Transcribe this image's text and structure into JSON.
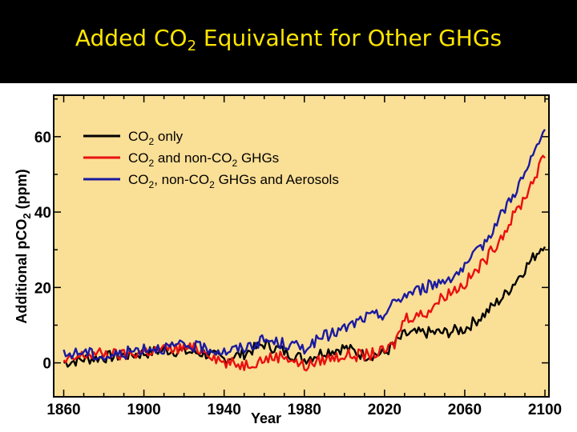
{
  "slide": {
    "title_main": "Added CO",
    "title_sub": "2",
    "title_rest": " Equivalent for Other GHGs",
    "title_color": "#ffe600",
    "header_bg": "#000000"
  },
  "chart_data": {
    "type": "line",
    "title": "",
    "xlabel": "Year",
    "ylabel_parts": [
      "Additional pCO",
      "2",
      " (ppm)"
    ],
    "xlim": [
      1855,
      2102
    ],
    "ylim": [
      -9,
      71
    ],
    "x_ticks": [
      1860,
      1900,
      1940,
      1980,
      2020,
      2060,
      2100
    ],
    "y_ticks": [
      0,
      20,
      40,
      60
    ],
    "plot_bg": "#fadf96",
    "grid": false,
    "legend_position": "top-left",
    "series": [
      {
        "legend_parts": [
          "CO",
          "2",
          " only"
        ],
        "color": "#000000",
        "points": [
          [
            1860,
            0
          ],
          [
            1870,
            1
          ],
          [
            1880,
            1.5
          ],
          [
            1890,
            2
          ],
          [
            1900,
            2.5
          ],
          [
            1910,
            3.5
          ],
          [
            1920,
            3
          ],
          [
            1930,
            2.5
          ],
          [
            1940,
            1
          ],
          [
            1950,
            2.5
          ],
          [
            1960,
            5
          ],
          [
            1970,
            3
          ],
          [
            1980,
            1
          ],
          [
            1990,
            3
          ],
          [
            2000,
            4
          ],
          [
            2010,
            2
          ],
          [
            2020,
            2.5
          ],
          [
            2025,
            5
          ],
          [
            2030,
            7.5
          ],
          [
            2040,
            8
          ],
          [
            2050,
            8
          ],
          [
            2060,
            9
          ],
          [
            2070,
            13
          ],
          [
            2080,
            18
          ],
          [
            2090,
            25
          ],
          [
            2100,
            32
          ]
        ]
      },
      {
        "legend_parts": [
          "CO",
          "2",
          " and non-CO",
          "2",
          " GHGs"
        ],
        "color": "#e81010",
        "points": [
          [
            1860,
            0
          ],
          [
            1870,
            2
          ],
          [
            1880,
            2.5
          ],
          [
            1890,
            2
          ],
          [
            1900,
            3
          ],
          [
            1910,
            3.5
          ],
          [
            1920,
            4
          ],
          [
            1930,
            3.5
          ],
          [
            1940,
            0
          ],
          [
            1950,
            -0.5
          ],
          [
            1960,
            1
          ],
          [
            1970,
            2
          ],
          [
            1980,
            -1
          ],
          [
            1990,
            1
          ],
          [
            2000,
            2
          ],
          [
            2010,
            2
          ],
          [
            2020,
            3
          ],
          [
            2025,
            5
          ],
          [
            2030,
            12
          ],
          [
            2040,
            13
          ],
          [
            2050,
            18
          ],
          [
            2060,
            21
          ],
          [
            2070,
            27
          ],
          [
            2080,
            35
          ],
          [
            2090,
            44
          ],
          [
            2100,
            55
          ]
        ]
      },
      {
        "legend_parts": [
          "CO",
          "2",
          ", non-CO",
          "2",
          " GHGs and Aerosols"
        ],
        "color": "#1a1aa0",
        "points": [
          [
            1860,
            2
          ],
          [
            1870,
            3
          ],
          [
            1880,
            1.5
          ],
          [
            1890,
            2.5
          ],
          [
            1900,
            4
          ],
          [
            1910,
            4
          ],
          [
            1920,
            4.5
          ],
          [
            1930,
            4
          ],
          [
            1940,
            3
          ],
          [
            1950,
            4
          ],
          [
            1960,
            6
          ],
          [
            1970,
            5
          ],
          [
            1980,
            4
          ],
          [
            1990,
            7
          ],
          [
            2000,
            9
          ],
          [
            2010,
            12
          ],
          [
            2020,
            13
          ],
          [
            2025,
            16
          ],
          [
            2030,
            18
          ],
          [
            2040,
            20
          ],
          [
            2050,
            22
          ],
          [
            2060,
            25
          ],
          [
            2070,
            32
          ],
          [
            2080,
            41
          ],
          [
            2090,
            50
          ],
          [
            2100,
            62
          ]
        ]
      }
    ]
  }
}
